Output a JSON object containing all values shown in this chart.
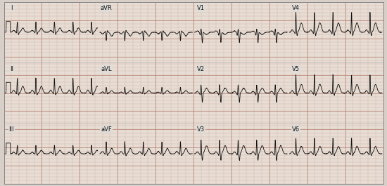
{
  "bg_color": "#d8d0c8",
  "grid_bg_color": "#e8ddd4",
  "grid_minor_color": "#c8a898",
  "grid_major_color": "#b88878",
  "ecg_color": "#111111",
  "label_bg": "#e0d8d0",
  "rows": 3,
  "cols": 4,
  "labels": [
    [
      "I",
      "aVR",
      "V1",
      "V4"
    ],
    [
      "II",
      "aVL",
      "V2",
      "V5"
    ],
    [
      "III",
      "aVF",
      "V3",
      "V6"
    ]
  ],
  "fig_width": 5.5,
  "fig_height": 2.65,
  "dpi": 100,
  "minor_step": 0.02,
  "major_step": 0.1
}
